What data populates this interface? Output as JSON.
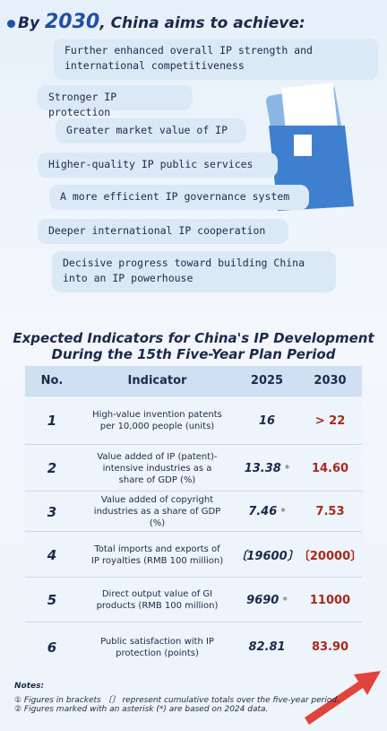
{
  "header": {
    "prefix": "By",
    "year": "2030",
    "suffix": ", China aims to achieve:"
  },
  "goals": [
    "Further enhanced overall IP strength and international competitiveness",
    "Stronger IP protection",
    "Greater market value of IP",
    "Higher-quality IP public services",
    "A more efficient IP governance system",
    "Deeper international IP cooperation",
    "Decisive progress toward building China into an IP powerhouse"
  ],
  "table": {
    "title_line1": "Expected Indicators for China's IP Development",
    "title_line2": "During the 15th Five-Year Plan Period",
    "columns": [
      "No.",
      "Indicator",
      "2025",
      "2030"
    ],
    "rows": [
      {
        "no": "1",
        "indicator": "High-value invention patents per 10,000 people (units)",
        "v2025": "16",
        "mark": "",
        "v2030": "> 22"
      },
      {
        "no": "2",
        "indicator": "Value added of IP (patent)-intensive industries as a share of GDP (%)",
        "v2025": "13.38",
        "mark": "*",
        "v2030": "14.60"
      },
      {
        "no": "3",
        "indicator": "Value added of copyright industries as a share of GDP (%)",
        "v2025": "7.46",
        "mark": "*",
        "v2030": "7.53"
      },
      {
        "no": "4",
        "indicator": "Total imports and exports of IP royalties (RMB 100 million)",
        "v2025": "〔19600〕",
        "mark": "",
        "v2030": "〔20000〕"
      },
      {
        "no": "5",
        "indicator": "Direct output value of GI products (RMB 100 million)",
        "v2025": "9690",
        "mark": "*",
        "v2030": "11000"
      },
      {
        "no": "6",
        "indicator": "Public satisfaction with IP protection (points)",
        "v2025": "82.81",
        "mark": "",
        "v2030": "83.90"
      }
    ]
  },
  "notes": {
    "title": "Notes:",
    "items": [
      "① Figures in brackets 〔〕 represent cumulative totals over the five-year period.",
      "② Figures marked with an asterisk (*) are based on 2024 data."
    ]
  }
}
